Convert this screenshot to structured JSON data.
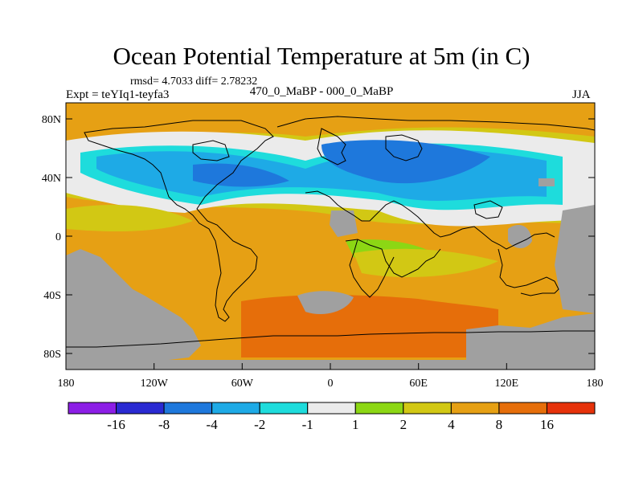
{
  "title": "Ocean Potential Temperature at 5m (in C)",
  "stats": "rmsd= 4.7033 diff= 2.78232",
  "experiment": "Expt = teYIq1-teyfa3",
  "subtitle": "470_0_MaBP - 000_0_MaBP",
  "season": "JJA",
  "lat_ticks": [
    "80N",
    "40N",
    "0",
    "40S",
    "80S"
  ],
  "lon_ticks": [
    "180",
    "120W",
    "60W",
    "0",
    "60E",
    "120E",
    "180"
  ],
  "colorbar": {
    "colors": [
      "#8c1ee6",
      "#2a2ad2",
      "#1e78dc",
      "#1eaae6",
      "#1edcdc",
      "#ebebeb",
      "#8cd714",
      "#d2c814",
      "#e6a014",
      "#e66e0a",
      "#e6320a"
    ],
    "labels": [
      "-16",
      "-8",
      "-4",
      "-2",
      "-1",
      "1",
      "2",
      "4",
      "8",
      "16"
    ]
  },
  "land_color": "#a0a0a0"
}
